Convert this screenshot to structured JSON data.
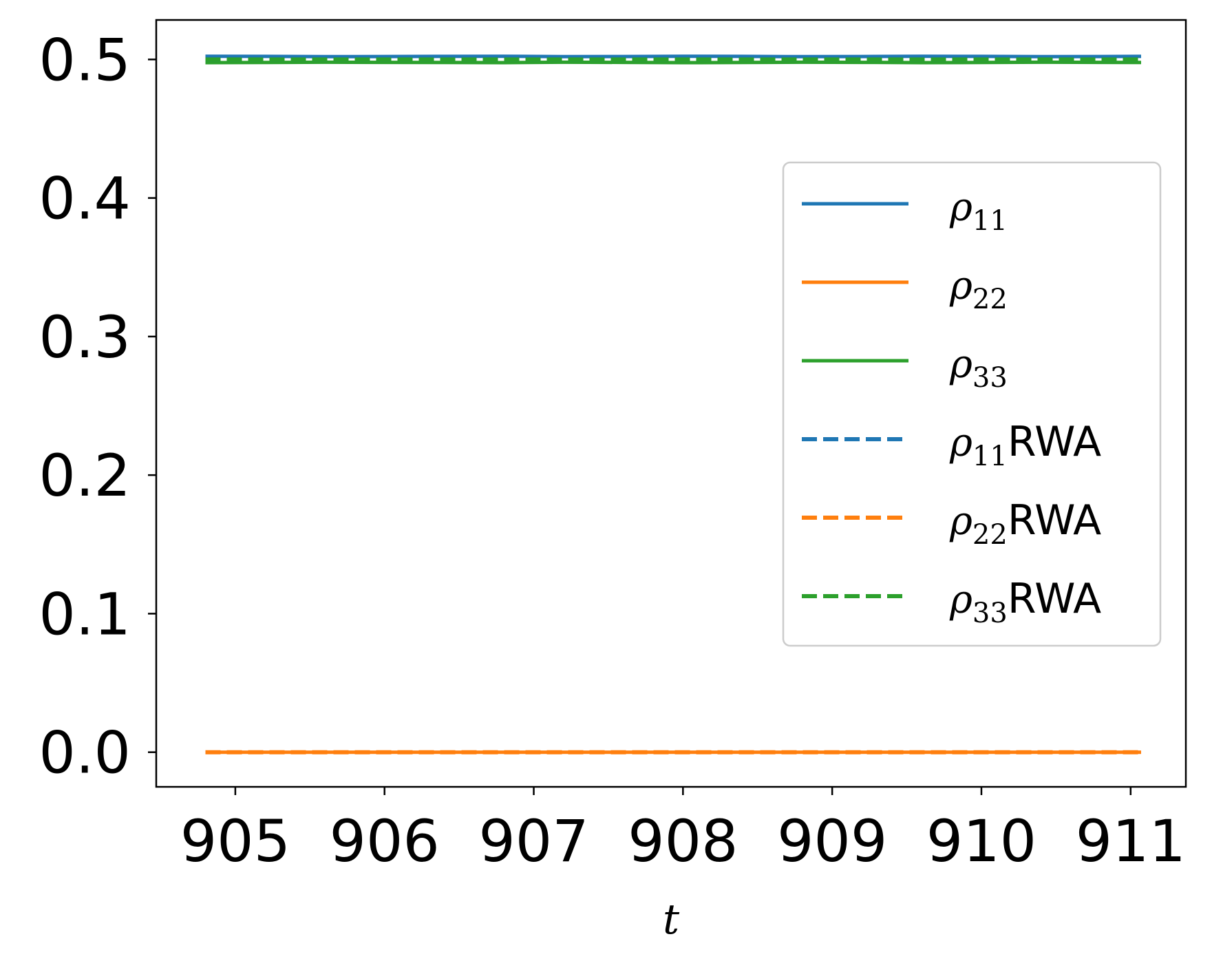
{
  "chart_data": {
    "type": "line",
    "title": "",
    "xlabel": "t",
    "ylabel": "",
    "xlim": [
      904.47,
      911.37
    ],
    "ylim": [
      -0.025,
      0.5285
    ],
    "xticks": [
      905,
      906,
      907,
      908,
      909,
      910,
      911
    ],
    "xtick_labels": [
      "905",
      "906",
      "907",
      "908",
      "909",
      "910",
      "911"
    ],
    "yticks": [
      0.0,
      0.1,
      0.2,
      0.3,
      0.4,
      0.5
    ],
    "ytick_labels": [
      "0.0",
      "0.1",
      "0.2",
      "0.3",
      "0.4",
      "0.5"
    ],
    "grid": false,
    "legend_position": "center-right",
    "x": [
      904.8,
      905.2,
      905.6,
      906.0,
      906.4,
      906.8,
      907.2,
      907.6,
      908.0,
      908.4,
      908.8,
      909.2,
      909.6,
      910.0,
      910.4,
      910.8,
      911.07
    ],
    "series": [
      {
        "label": "ρ",
        "sub": "11",
        "suffix": "",
        "color": "#1f77b4",
        "dash": "solid",
        "values": [
          0.5023,
          0.5022,
          0.502,
          0.5021,
          0.5022,
          0.5023,
          0.502,
          0.5021,
          0.5023,
          0.5022,
          0.502,
          0.5021,
          0.5023,
          0.5022,
          0.502,
          0.5021,
          0.5022
        ]
      },
      {
        "label": "ρ",
        "sub": "22",
        "suffix": "",
        "color": "#ff7f0e",
        "dash": "solid",
        "values": [
          0.0,
          0.0,
          0.0,
          0.0,
          0.0,
          0.0,
          0.0,
          0.0,
          0.0,
          0.0,
          0.0,
          0.0,
          0.0,
          0.0,
          0.0,
          0.0,
          0.0
        ]
      },
      {
        "label": "ρ",
        "sub": "33",
        "suffix": "",
        "color": "#2ca02c",
        "dash": "solid",
        "values": [
          0.4977,
          0.4978,
          0.498,
          0.4979,
          0.4978,
          0.4977,
          0.498,
          0.4979,
          0.4977,
          0.4978,
          0.498,
          0.4979,
          0.4977,
          0.4978,
          0.498,
          0.4979,
          0.4978
        ]
      },
      {
        "label": "ρ",
        "sub": "11",
        "suffix": "RWA",
        "color": "#1f77b4",
        "dash": "dashed",
        "values": [
          0.5,
          0.5,
          0.5,
          0.5,
          0.5,
          0.5,
          0.5,
          0.5,
          0.5,
          0.5,
          0.5,
          0.5,
          0.5,
          0.5,
          0.5,
          0.5,
          0.5
        ]
      },
      {
        "label": "ρ",
        "sub": "22",
        "suffix": "RWA",
        "color": "#ff7f0e",
        "dash": "dashed",
        "values": [
          0.0,
          0.0,
          0.0,
          0.0,
          0.0,
          0.0,
          0.0,
          0.0,
          0.0,
          0.0,
          0.0,
          0.0,
          0.0,
          0.0,
          0.0,
          0.0,
          0.0
        ]
      },
      {
        "label": "ρ",
        "sub": "33",
        "suffix": "RWA",
        "color": "#2ca02c",
        "dash": "dashed",
        "values": [
          0.5,
          0.5,
          0.5,
          0.5,
          0.5,
          0.5,
          0.5,
          0.5,
          0.5,
          0.5,
          0.5,
          0.5,
          0.5,
          0.5,
          0.5,
          0.5,
          0.5
        ]
      }
    ]
  }
}
